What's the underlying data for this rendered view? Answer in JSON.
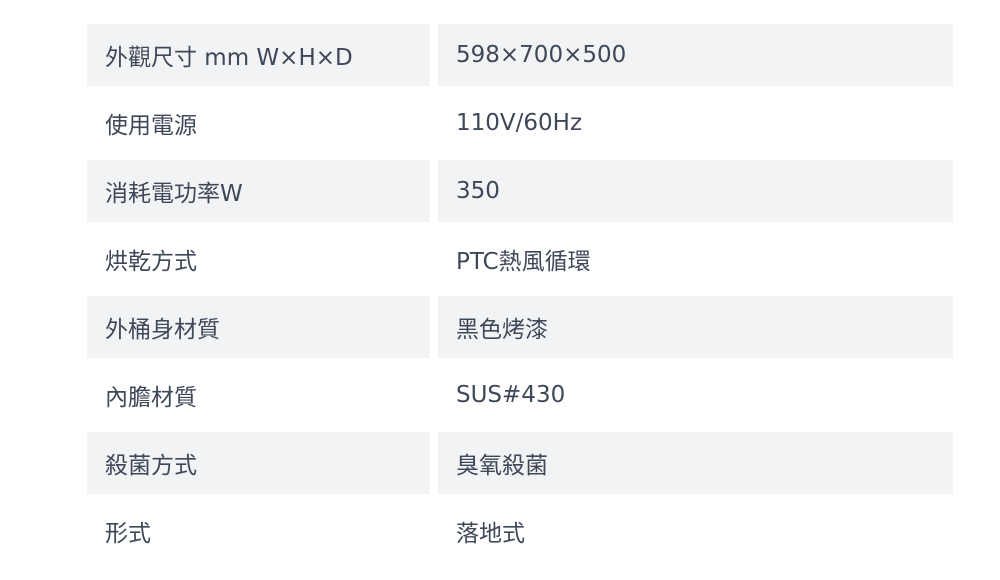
{
  "specs": [
    {
      "label": "外觀尺寸 mm W×H×D",
      "value": "598×700×500"
    },
    {
      "label": "使用電源",
      "value": "110V/60Hz"
    },
    {
      "label": "消耗電功率W",
      "value": "350"
    },
    {
      "label": "烘乾方式",
      "value": "PTC熱風循環"
    },
    {
      "label": "外桶身材質",
      "value": "黑色烤漆"
    },
    {
      "label": "內膽材質",
      "value": "SUS#430"
    },
    {
      "label": "殺菌方式",
      "value": "臭氧殺菌"
    },
    {
      "label": "形式",
      "value": "落地式"
    }
  ],
  "colors": {
    "shade": "#f2f3f5",
    "text": "#3f4858"
  }
}
